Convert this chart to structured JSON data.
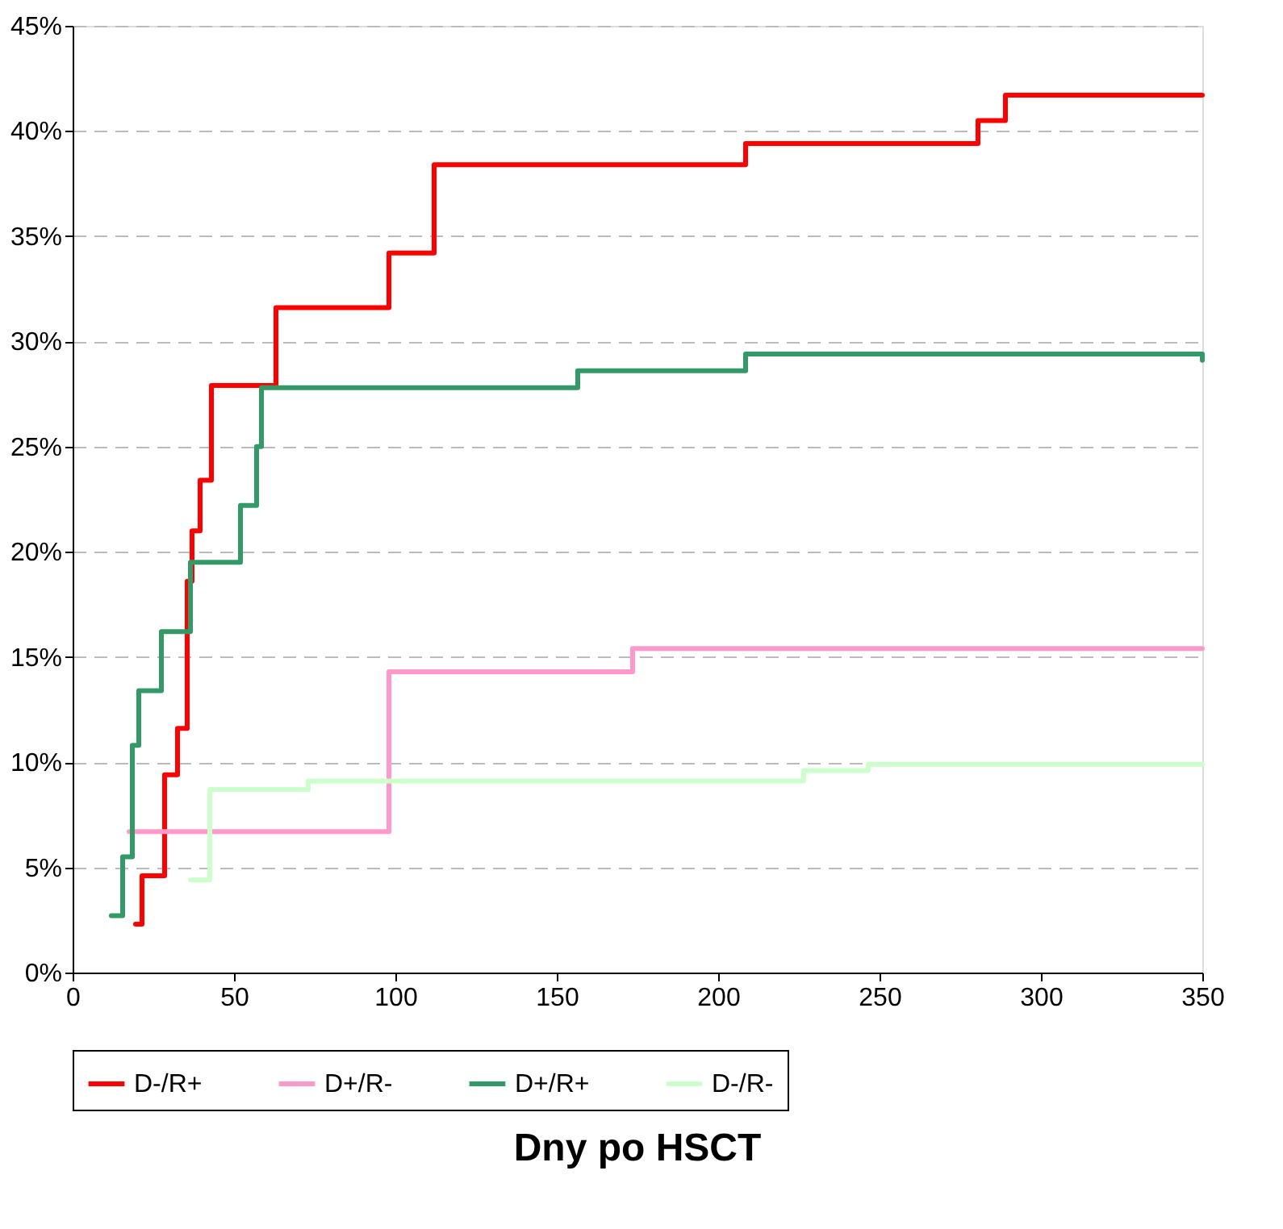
{
  "chart_data": {
    "type": "step",
    "xlabel": "Dny po HSCT",
    "xlim": [
      0,
      350
    ],
    "xticks": [
      0,
      50,
      100,
      150,
      200,
      250,
      300,
      350
    ],
    "ylim": [
      0,
      45
    ],
    "yticks": [
      {
        "value": 0,
        "label": "0%"
      },
      {
        "value": 5,
        "label": "5%"
      },
      {
        "value": 10,
        "label": "10%"
      },
      {
        "value": 15,
        "label": "15%"
      },
      {
        "value": 20,
        "label": "20%"
      },
      {
        "value": 25,
        "label": "25%"
      },
      {
        "value": 30,
        "label": "30%"
      },
      {
        "value": 35,
        "label": "35%"
      },
      {
        "value": 40,
        "label": "40%"
      },
      {
        "value": 45,
        "label": "45%"
      }
    ],
    "grid": "y",
    "legend": "bottom",
    "marker": "none",
    "line_style": "solid",
    "series": [
      {
        "name": "D-/R+",
        "color": "#ff0000",
        "x": [
          19.5,
          21.5,
          28.5,
          32.5,
          35.5,
          37,
          39.5,
          43,
          63,
          98,
          112,
          208.5,
          280.5,
          289,
          350
        ],
        "values": [
          2.3,
          4.6,
          9.4,
          11.6,
          18.6,
          21.0,
          23.4,
          27.9,
          31.6,
          34.2,
          38.4,
          39.4,
          40.5,
          41.7,
          41.7
        ]
      },
      {
        "name": "D+/R-",
        "color": "#ff99cc",
        "x": [
          17.5,
          98,
          173.5,
          350
        ],
        "values": [
          6.7,
          14.3,
          15.4,
          15.4
        ]
      },
      {
        "name": "D+/R+",
        "color": "#339966",
        "x": [
          12,
          15.5,
          18.5,
          20.5,
          27.5,
          36.5,
          52,
          57,
          58.5,
          156.5,
          208.5,
          350
        ],
        "values": [
          2.7,
          5.5,
          10.8,
          13.4,
          16.2,
          19.5,
          22.2,
          25.0,
          27.8,
          28.6,
          29.4,
          29.1
        ]
      },
      {
        "name": "D-/R-",
        "color": "#ccffcc",
        "x": [
          36.5,
          42.5,
          73,
          226.5,
          246.5,
          350
        ],
        "values": [
          4.4,
          8.7,
          9.1,
          9.6,
          9.9,
          9.9
        ]
      }
    ]
  }
}
